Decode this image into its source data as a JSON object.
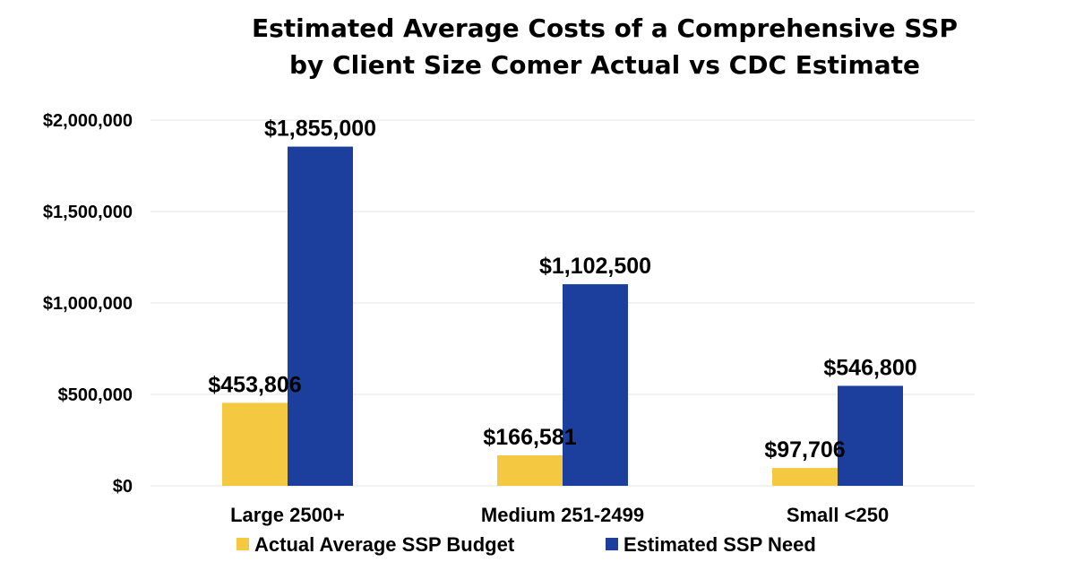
{
  "chart_data": {
    "type": "bar",
    "title": "Estimated Average Costs of a Comprehensive SSP by Client Size Comer Actual vs CDC Estimate",
    "title_lines": [
      "Estimated Average Costs of a Comprehensive SSP",
      "by Client Size Comer Actual vs CDC Estimate"
    ],
    "xlabel": "",
    "ylabel": "",
    "categories": [
      "Large 2500+",
      "Medium 251-2499",
      "Small <250"
    ],
    "series": [
      {
        "name": "Actual Average SSP Budget",
        "color": "#F5C842",
        "values": [
          453806,
          166581,
          97706
        ],
        "labels": [
          "$453,806",
          "$166,581",
          "$97,706"
        ]
      },
      {
        "name": "Estimated SSP Need",
        "color": "#1C3F9E",
        "values": [
          1855000,
          1102500,
          546800
        ],
        "labels": [
          "$1,855,000",
          "$1,102,500",
          "$546,800"
        ]
      }
    ],
    "ylim": [
      0,
      2000000
    ],
    "yticks": [
      0,
      500000,
      1000000,
      1500000,
      2000000
    ],
    "ytick_labels": [
      "$0",
      "$500,000",
      "$1,000,000",
      "$1,500,000",
      "$2,000,000"
    ],
    "grid": true,
    "legend_position": "bottom"
  }
}
